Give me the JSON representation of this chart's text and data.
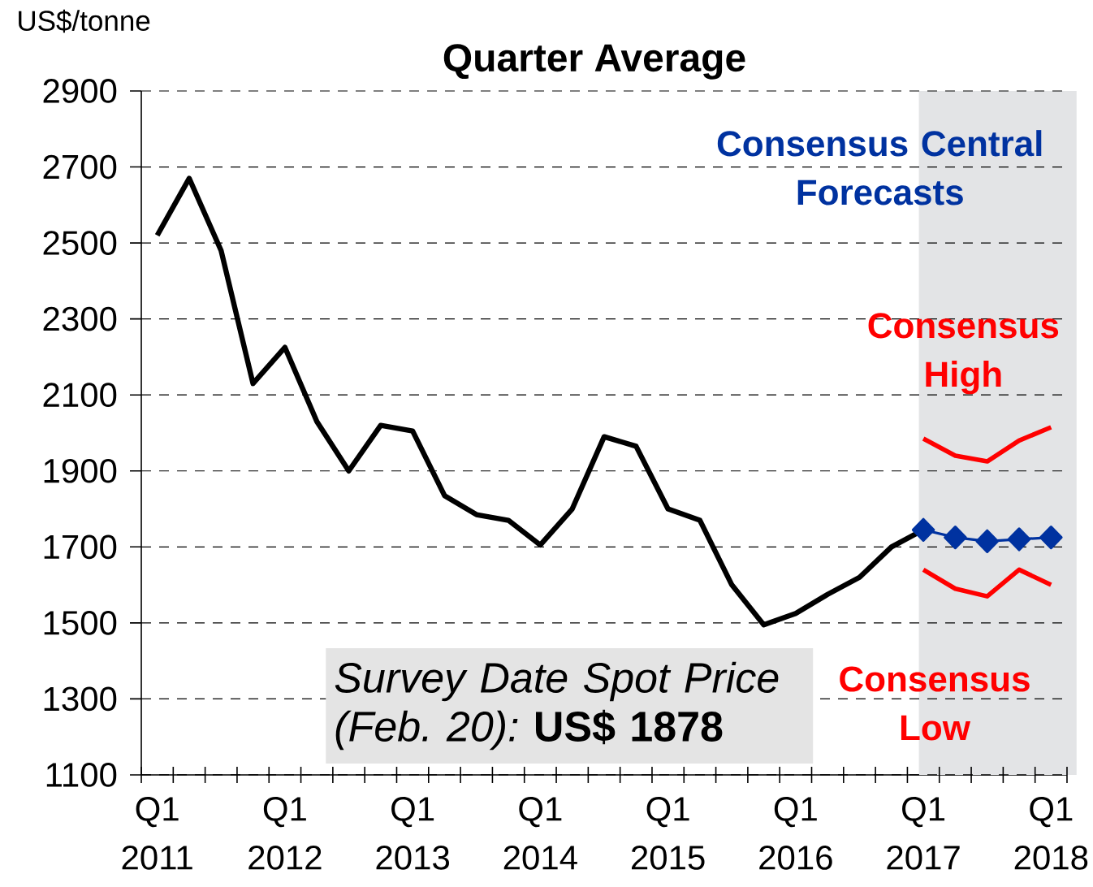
{
  "chart_data": {
    "type": "line",
    "title": "Quarter Average",
    "ylabel": "US$/tonne",
    "categories": [
      "Q1 2011",
      null,
      null,
      null,
      "Q1 2012",
      null,
      null,
      null,
      "Q1 2013",
      null,
      null,
      null,
      "Q1 2014",
      null,
      null,
      null,
      "Q1 2015",
      null,
      null,
      null,
      "Q1 2016",
      null,
      null,
      null,
      "Q1 2017",
      null,
      null,
      null,
      "Q1 2018"
    ],
    "series": [
      {
        "color": "#000000",
        "values": [
          2520,
          2670,
          2480,
          2130,
          2225,
          2030,
          1900,
          2020,
          2005,
          1835,
          1785,
          1770,
          1705,
          1800,
          1990,
          1965,
          1800,
          1770,
          1600,
          1495,
          1525,
          1575,
          1620,
          1700,
          1745,
          null,
          null,
          null,
          null
        ]
      },
      {
        "name": "Consensus Central Forecasts",
        "color": "#0032a0",
        "marker": "diamond",
        "values": [
          null,
          null,
          null,
          null,
          null,
          null,
          null,
          null,
          null,
          null,
          null,
          null,
          null,
          null,
          null,
          null,
          null,
          null,
          null,
          null,
          null,
          null,
          null,
          null,
          1745,
          1725,
          1715,
          1720,
          1725
        ]
      },
      {
        "name": "Consensus High",
        "color": "#ff0000",
        "values": [
          null,
          null,
          null,
          null,
          null,
          null,
          null,
          null,
          null,
          null,
          null,
          null,
          null,
          null,
          null,
          null,
          null,
          null,
          null,
          null,
          null,
          null,
          null,
          null,
          1985,
          1940,
          1925,
          1980,
          2015
        ]
      },
      {
        "name": "Consensus Low",
        "color": "#ff0000",
        "values": [
          null,
          null,
          null,
          null,
          null,
          null,
          null,
          null,
          null,
          null,
          null,
          null,
          null,
          null,
          null,
          null,
          null,
          null,
          null,
          null,
          null,
          null,
          null,
          null,
          1640,
          1590,
          1570,
          1640,
          1600
        ]
      }
    ],
    "ylim": [
      1100,
      2900
    ],
    "yticks": [
      1100,
      1300,
      1500,
      1700,
      1900,
      2100,
      2300,
      2500,
      2700,
      2900
    ],
    "grid": "y",
    "legend": false,
    "marker": "none",
    "line_style": "solid",
    "bands": [
      {
        "axis": "x",
        "from": "Q1 2017",
        "to": "Q1 2018",
        "color": "#e3e4e6"
      }
    ],
    "annotations": [
      "*Survey Date Spot Price (Feb. 20):* **US$ 1878**"
    ]
  }
}
